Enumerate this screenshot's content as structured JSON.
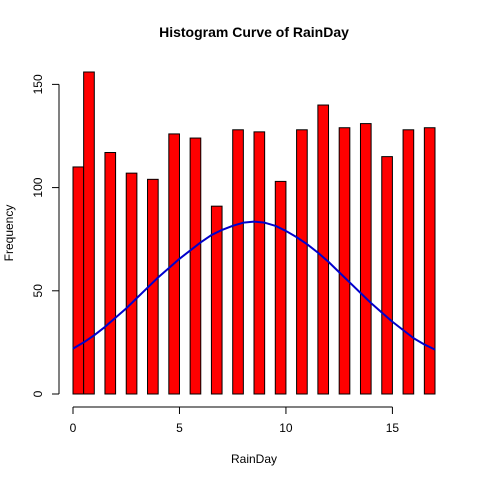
{
  "chart_data": {
    "type": "bar",
    "title": "Histogram Curve of RainDay",
    "xlabel": "RainDay",
    "ylabel": "Frequency",
    "xlim": [
      0,
      17
    ],
    "ylim": [
      0,
      156
    ],
    "x_ticks": [
      0,
      5,
      10,
      15
    ],
    "y_ticks": [
      0,
      50,
      100,
      150
    ],
    "bars": [
      {
        "x_start": 0.0,
        "x_end": 0.5,
        "value": 110
      },
      {
        "x_start": 0.5,
        "x_end": 1.0,
        "value": 156
      },
      {
        "x_start": 1.5,
        "x_end": 2.0,
        "value": 117
      },
      {
        "x_start": 2.5,
        "x_end": 3.0,
        "value": 107
      },
      {
        "x_start": 3.5,
        "x_end": 4.0,
        "value": 104
      },
      {
        "x_start": 4.5,
        "x_end": 5.0,
        "value": 126
      },
      {
        "x_start": 5.5,
        "x_end": 6.0,
        "value": 124
      },
      {
        "x_start": 6.5,
        "x_end": 7.0,
        "value": 91
      },
      {
        "x_start": 7.5,
        "x_end": 8.0,
        "value": 128
      },
      {
        "x_start": 8.5,
        "x_end": 9.0,
        "value": 127
      },
      {
        "x_start": 9.5,
        "x_end": 10.0,
        "value": 103
      },
      {
        "x_start": 10.5,
        "x_end": 11.0,
        "value": 128
      },
      {
        "x_start": 11.5,
        "x_end": 12.0,
        "value": 140
      },
      {
        "x_start": 12.5,
        "x_end": 13.0,
        "value": 129
      },
      {
        "x_start": 13.5,
        "x_end": 14.0,
        "value": 131
      },
      {
        "x_start": 14.5,
        "x_end": 15.0,
        "value": 115
      },
      {
        "x_start": 15.5,
        "x_end": 16.0,
        "value": 128
      },
      {
        "x_start": 16.5,
        "x_end": 17.0,
        "value": 129
      }
    ],
    "curve": {
      "x": [
        0,
        0.5,
        1,
        1.5,
        2,
        2.5,
        3,
        3.5,
        4,
        4.5,
        5,
        5.5,
        6,
        6.5,
        7,
        7.5,
        8,
        8.5,
        9,
        9.5,
        10,
        10.5,
        11,
        11.5,
        12,
        12.5,
        13,
        13.5,
        14,
        14.5,
        15,
        15.5,
        16,
        16.5,
        17
      ],
      "y": [
        22,
        25,
        28.5,
        32.5,
        37,
        41.5,
        46.5,
        51.5,
        56.5,
        61,
        65.5,
        69.5,
        73.5,
        77,
        79.5,
        81.5,
        83,
        83.5,
        83,
        81.5,
        79,
        76,
        72.5,
        68.5,
        64,
        59,
        54,
        49,
        44,
        39.5,
        35,
        31,
        27,
        24,
        21.5
      ]
    },
    "grid": false,
    "legend": "none",
    "bar_color": "#ff0000",
    "bar_border_color": "#000000",
    "curve_color": "#0000cc"
  }
}
